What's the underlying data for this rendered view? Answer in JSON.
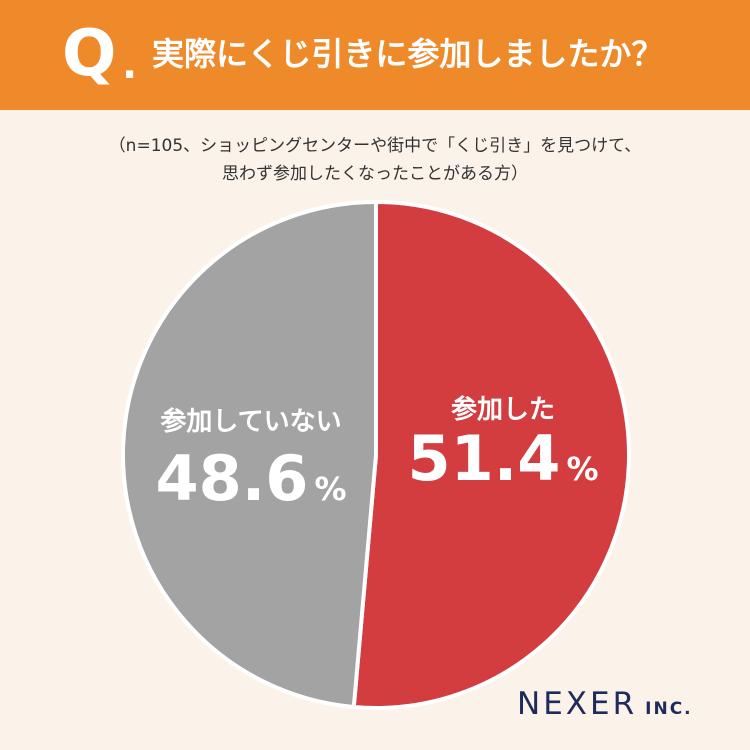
{
  "header": {
    "q_mark": "Q",
    "q_dot": ".",
    "question": "実際にくじ引きに参加しましたか？"
  },
  "note": {
    "line1": "（n=105、ショッピングセンターや街中で「くじ引き」を見つけて、",
    "line2": "思わず参加したくなったことがある方）"
  },
  "colors": {
    "header_bg": "#EF8A2B",
    "page_bg": "#FBF3EA",
    "participated": "#D33D3F",
    "not_participated": "#A3A3A3",
    "logo": "#1F2B5C"
  },
  "chart_data": {
    "type": "pie",
    "title": "実際にくじ引きに参加しましたか？",
    "slices": [
      {
        "label": "参加した",
        "value": 51.4,
        "value_text": "51.4",
        "unit": "%",
        "color": "#D33D3F"
      },
      {
        "label": "参加していない",
        "value": 48.6,
        "value_text": "48.6",
        "unit": "%",
        "color": "#A3A3A3"
      }
    ]
  },
  "logo": {
    "main": "NEXER",
    "suffix": "INC."
  }
}
